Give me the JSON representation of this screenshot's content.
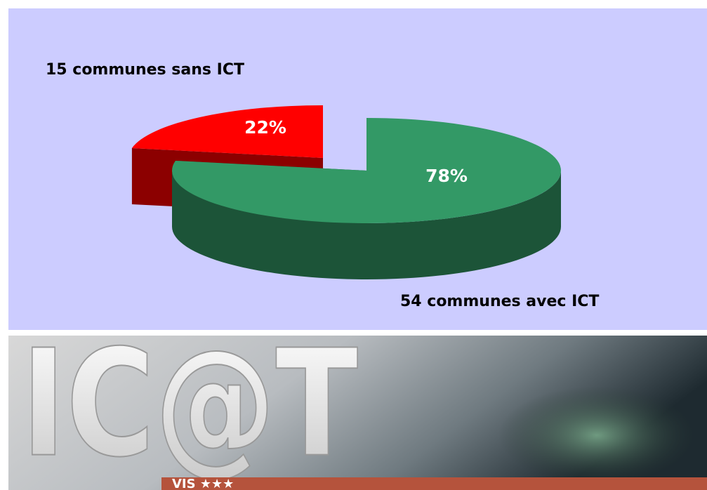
{
  "chart_data": {
    "type": "pie",
    "categories": [
      "15 communes sans ICT",
      "54 communes avec ICT"
    ],
    "values": [
      22,
      78
    ],
    "value_labels": [
      "22%",
      "78%"
    ],
    "colors": [
      "#ff0000",
      "#339966"
    ]
  },
  "banner": {
    "logo": "IC@T",
    "tagline": "VIS ★★★"
  }
}
